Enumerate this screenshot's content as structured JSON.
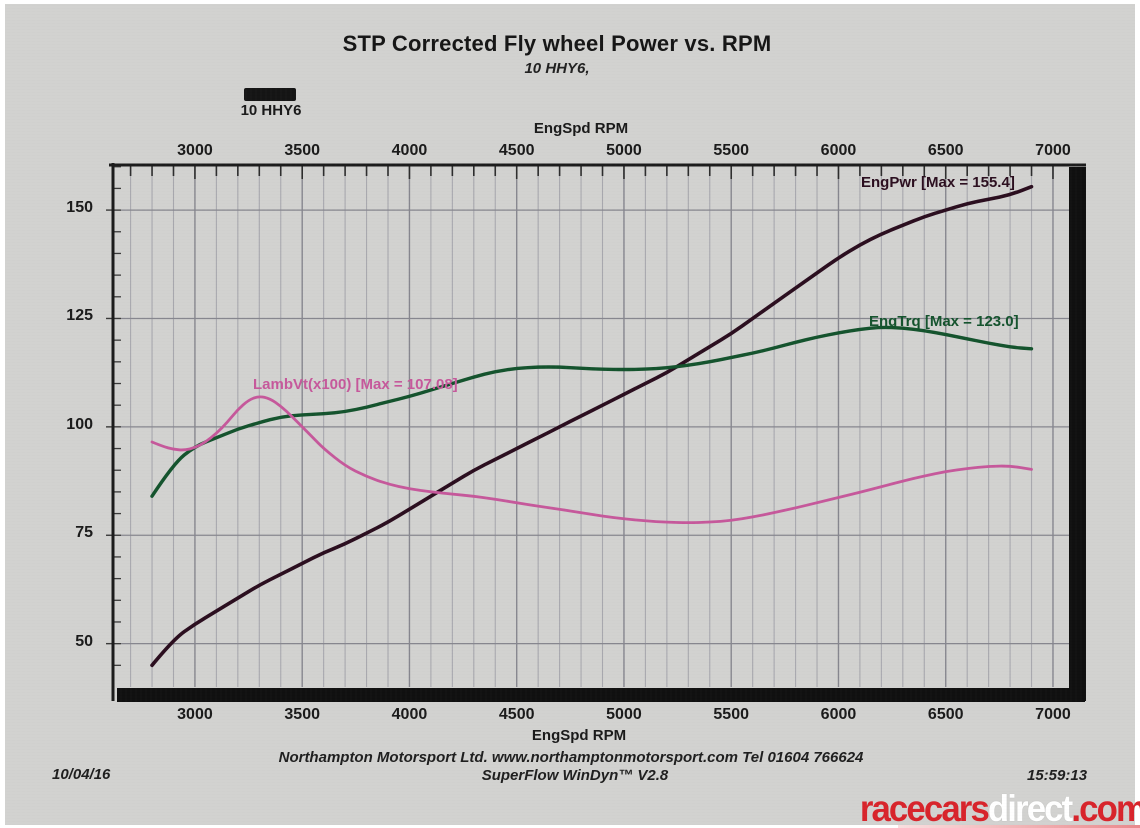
{
  "title": "STP Corrected Fly wheel Power vs. RPM",
  "subtitle": "10 HHY6,",
  "legend": {
    "label": "10 HHY6",
    "swatch_color": "#151515"
  },
  "axes": {
    "top_axis_label": "EngSpd RPM",
    "bottom_axis_label": "EngSpd RPM"
  },
  "footer": {
    "date": "10/04/16",
    "company_line": "Northampton Motorsport Ltd. www.northamptonmotorsport.com Tel 01604 766624",
    "software_line": "SuperFlow WinDyn™ V2.8",
    "time": "15:59:13"
  },
  "watermark": {
    "text_red_1": "racecars",
    "text_white": "direct",
    "text_red_2": ".com",
    "red": "#d8242b",
    "white": "#ffffff"
  },
  "chart_data": {
    "type": "line",
    "title": "STP Corrected Fly wheel Power vs. RPM",
    "subtitle": "10 HHY6",
    "xlabel": "EngSpd RPM",
    "ylabel": "",
    "xlim": [
      2618,
      7084
    ],
    "ylim": [
      40,
      160.4
    ],
    "x_ticks": [
      3000,
      3500,
      4000,
      4500,
      5000,
      5500,
      6000,
      6500,
      7000
    ],
    "y_ticks": [
      50,
      75,
      100,
      125,
      150
    ],
    "grid": "on",
    "minor_x_grid_step_rpm": 100,
    "legend_position": "top-left",
    "series": [
      {
        "name": "EngPwr",
        "label": "EngPwr [Max = 155.4]",
        "max": 155.4,
        "color": "#2b0e1f",
        "x": [
          2800,
          2900,
          3000,
          3100,
          3200,
          3300,
          3400,
          3500,
          3600,
          3700,
          3800,
          3900,
          4000,
          4100,
          4200,
          4300,
          4400,
          4500,
          4600,
          4700,
          4800,
          4900,
          5000,
          5100,
          5200,
          5300,
          5400,
          5500,
          5600,
          5700,
          5800,
          5900,
          6000,
          6100,
          6200,
          6300,
          6400,
          6500,
          6600,
          6700,
          6800,
          6900
        ],
        "y": [
          45,
          51,
          54.5,
          57.5,
          60.5,
          63.5,
          66,
          68.5,
          71,
          73,
          75.5,
          78,
          81,
          84,
          87,
          90,
          92.5,
          95,
          97.5,
          100,
          102.5,
          105,
          107.5,
          110,
          112.5,
          115.5,
          118.5,
          121.5,
          125,
          128.5,
          132,
          135.5,
          139,
          142,
          144.5,
          146.5,
          148.5,
          150,
          151.5,
          152.5,
          153.5,
          155.4
        ]
      },
      {
        "name": "EngTrq",
        "label": "EngTrq [Max = 123.0]",
        "max": 123.0,
        "color": "#14532d",
        "x": [
          2800,
          2900,
          3000,
          3100,
          3200,
          3300,
          3400,
          3500,
          3600,
          3700,
          3800,
          3900,
          4000,
          4100,
          4200,
          4300,
          4400,
          4500,
          4600,
          4700,
          4800,
          4900,
          5000,
          5100,
          5200,
          5300,
          5400,
          5500,
          5600,
          5700,
          5800,
          5900,
          6000,
          6100,
          6200,
          6300,
          6400,
          6500,
          6600,
          6700,
          6800,
          6900
        ],
        "y": [
          84,
          91.5,
          95.5,
          97.5,
          99.5,
          101,
          102.3,
          102.8,
          103,
          103.5,
          104.5,
          105.8,
          107,
          108.5,
          110,
          111.5,
          112.8,
          113.5,
          113.8,
          113.8,
          113.5,
          113.3,
          113.2,
          113.3,
          113.6,
          114.2,
          115,
          116,
          117,
          118.2,
          119.5,
          120.7,
          121.7,
          122.5,
          123,
          122.8,
          122.2,
          121.3,
          120.3,
          119.3,
          118.4,
          118
        ]
      },
      {
        "name": "LambVt(x100)",
        "label": "LambVt(x100) [Max = 107.08]",
        "max": 107.08,
        "color": "#c6589b",
        "x": [
          2800,
          2850,
          2900,
          2950,
          3000,
          3050,
          3100,
          3150,
          3200,
          3250,
          3300,
          3350,
          3400,
          3450,
          3500,
          3550,
          3600,
          3700,
          3800,
          3900,
          4000,
          4100,
          4200,
          4300,
          4400,
          4500,
          4600,
          4700,
          4800,
          4900,
          5000,
          5100,
          5200,
          5300,
          5400,
          5500,
          5600,
          5700,
          5800,
          5900,
          6000,
          6100,
          6200,
          6300,
          6400,
          6500,
          6600,
          6700,
          6800,
          6900
        ],
        "y": [
          96.5,
          95.5,
          94.8,
          94.6,
          95.2,
          96.5,
          98.5,
          101,
          104,
          106.2,
          107.1,
          106.5,
          104.8,
          102.5,
          100,
          97.5,
          95,
          91,
          88.5,
          86.8,
          85.7,
          85,
          84.5,
          84,
          83.3,
          82.5,
          81.7,
          81,
          80.2,
          79.4,
          78.8,
          78.3,
          78,
          77.9,
          78,
          78.4,
          79.2,
          80.2,
          81.3,
          82.5,
          83.7,
          84.9,
          86.2,
          87.5,
          88.7,
          89.7,
          90.4,
          90.9,
          91,
          90.2
        ]
      }
    ]
  }
}
